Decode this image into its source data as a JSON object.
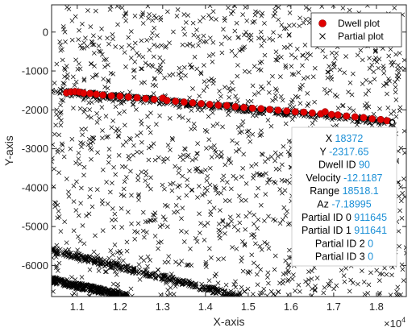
{
  "chart_data": {
    "type": "scatter",
    "xlabel": "X-axis",
    "ylabel": "Y-axis",
    "x_exponent_label": "×10",
    "x_exponent_power": "4",
    "xlim": [
      10400,
      18700
    ],
    "ylim": [
      -6800,
      700
    ],
    "x_ticks": [
      11000,
      12000,
      13000,
      14000,
      15000,
      16000,
      17000,
      18000
    ],
    "x_tick_labels": [
      "1.1",
      "1.2",
      "1.3",
      "1.4",
      "1.5",
      "1.6",
      "1.7",
      "1.8"
    ],
    "y_ticks": [
      0,
      -1000,
      -2000,
      -3000,
      -4000,
      -5000,
      -6000
    ],
    "y_tick_labels": [
      "0",
      "-1000",
      "-2000",
      "-3000",
      "-4000",
      "-5000",
      "-6000"
    ],
    "grid": false,
    "legend_position": "top-right",
    "series": [
      {
        "name": "Dwell plot",
        "marker": "filled-circle",
        "color": "#e00000",
        "x": [
          10750,
          10850,
          10950,
          11050,
          11150,
          11300,
          11450,
          11600,
          11800,
          12000,
          12200,
          12400,
          12600,
          12800,
          13000,
          13100,
          13300,
          13500,
          13700,
          13900,
          14100,
          14300,
          14500,
          14700,
          14900,
          15100,
          15300,
          15500,
          15700,
          15900,
          16100,
          16300,
          16500,
          16700,
          16800,
          16950,
          17100,
          17300,
          17500,
          17700,
          17900,
          18100,
          18250
        ],
        "y": [
          -1560,
          -1540,
          -1530,
          -1545,
          -1570,
          -1580,
          -1600,
          -1620,
          -1640,
          -1650,
          -1670,
          -1690,
          -1710,
          -1730,
          -1700,
          -1760,
          -1780,
          -1800,
          -1820,
          -1840,
          -1860,
          -1880,
          -1890,
          -1920,
          -1940,
          -1960,
          -1970,
          -1990,
          -2010,
          -2030,
          -2050,
          -2060,
          -2080,
          -2100,
          -2050,
          -2120,
          -2130,
          -2160,
          -2180,
          -2200,
          -2230,
          -2250,
          -2280
        ]
      },
      {
        "name": "Partial plot",
        "marker": "x",
        "color": "#000000",
        "dense_bands": [
          {
            "x_start": 10400,
            "y_start": -1520,
            "x_end": 18372,
            "y_end": -2320
          },
          {
            "x_start": 10400,
            "y_start": -5600,
            "x_end": 14800,
            "y_end": -6800
          },
          {
            "x_start": 10400,
            "y_start": -6380,
            "x_end": 12200,
            "y_end": -6800
          }
        ],
        "scattered_count_approx": 1500
      }
    ],
    "highlighted_point": {
      "x": 18372,
      "y": -2317.65
    }
  },
  "legend": {
    "dwell_label": "Dwell plot",
    "partial_label": "Partial plot"
  },
  "datatip": {
    "rows": [
      {
        "key": "X",
        "value": "18372"
      },
      {
        "key": "Y",
        "value": "-2317.65"
      },
      {
        "key": "Dwell ID",
        "value": "90"
      },
      {
        "key": "Velocity",
        "value": "-12.1187"
      },
      {
        "key": "Range",
        "value": "18518.1"
      },
      {
        "key": "Az",
        "value": "-7.18995"
      },
      {
        "key": "Partial ID 0",
        "value": "911645"
      },
      {
        "key": "Partial ID 1",
        "value": "911641"
      },
      {
        "key": "Partial ID 2",
        "value": "0"
      },
      {
        "key": "Partial ID 3",
        "value": "0"
      }
    ]
  }
}
